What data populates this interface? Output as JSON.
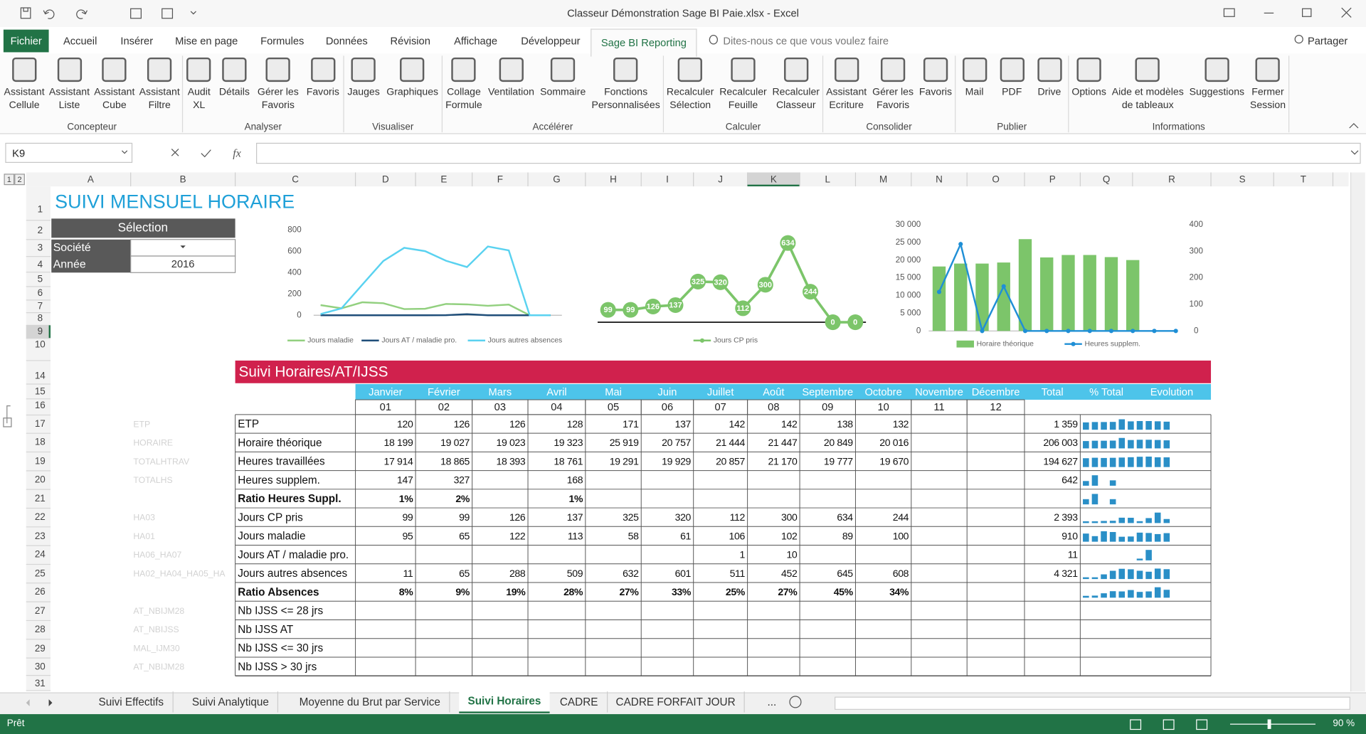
{
  "title_bar": {
    "title": "Classeur Démonstration Sage BI Paie.xlsx - Excel"
  },
  "ribbon_tabs": [
    "Fichier",
    "Accueil",
    "Insérer",
    "Mise en page",
    "Formules",
    "Données",
    "Révision",
    "Affichage",
    "Développeur",
    "Sage BI Reporting"
  ],
  "tell_me": "Dites-nous ce que vous voulez faire",
  "share": "Partager",
  "ribbon_groups": [
    {
      "name": "Concepteur",
      "buttons": [
        [
          "Assistant",
          "Cellule"
        ],
        [
          "Assistant",
          "Liste"
        ],
        [
          "Assistant",
          "Cube"
        ],
        [
          "Assistant",
          "Filtre"
        ]
      ]
    },
    {
      "name": "Analyser",
      "buttons": [
        [
          "Audit",
          "XL"
        ],
        [
          "Détails"
        ],
        [
          "Gérer les",
          "Favoris"
        ],
        [
          "Favoris"
        ]
      ]
    },
    {
      "name": "Visualiser",
      "buttons": [
        [
          "Jauges"
        ],
        [
          "Graphiques"
        ]
      ]
    },
    {
      "name": "Accélérer",
      "buttons": [
        [
          "Collage",
          "Formule"
        ],
        [
          "Ventilation"
        ],
        [
          "Sommaire"
        ],
        [
          "Fonctions",
          "Personnalisées"
        ]
      ]
    },
    {
      "name": "Calculer",
      "buttons": [
        [
          "Recalculer",
          "Sélection"
        ],
        [
          "Recalculer",
          "Feuille"
        ],
        [
          "Recalculer",
          "Classeur"
        ]
      ]
    },
    {
      "name": "Consolider",
      "buttons": [
        [
          "Assistant",
          "Ecriture"
        ],
        [
          "Gérer les",
          "Favoris"
        ],
        [
          "Favoris"
        ]
      ]
    },
    {
      "name": "Publier",
      "buttons": [
        [
          "Mail"
        ],
        [
          "PDF"
        ],
        [
          "Drive"
        ]
      ]
    },
    {
      "name": "Informations",
      "buttons": [
        [
          "Options"
        ],
        [
          "Aide et modèles",
          "de tableaux"
        ],
        [
          "Suggestions"
        ],
        [
          "Fermer",
          "Session"
        ]
      ]
    }
  ],
  "formula_bar": {
    "name_box": "K9",
    "function_label": "fx"
  },
  "outline_levels": [
    "1",
    "2"
  ],
  "columns": [
    "A",
    "B",
    "C",
    "D",
    "E",
    "F",
    "G",
    "H",
    "I",
    "J",
    "K",
    "L",
    "M",
    "N",
    "O",
    "P",
    "Q",
    "R",
    "S",
    "T"
  ],
  "rows": [
    "1",
    "2",
    "3",
    "4",
    "5",
    "6",
    "7",
    "8",
    "9",
    "10",
    "14",
    "15",
    "16",
    "17",
    "18",
    "19",
    "20",
    "21",
    "22",
    "23",
    "24",
    "25",
    "26",
    "27",
    "28",
    "29",
    "30",
    "31"
  ],
  "sheet": {
    "title": "SUIVI MENSUEL HORAIRE",
    "selection": {
      "header": "Sélection",
      "rows": [
        {
          "label": "Société"
        },
        {
          "label": "Année",
          "value": "2016"
        }
      ]
    }
  },
  "charts": [
    {
      "type": "line",
      "ylim": [
        0,
        800
      ],
      "yticks": [
        0,
        200,
        400,
        600,
        800
      ],
      "series": [
        {
          "name": "Jours maladie",
          "color": "#92d07f",
          "values": [
            95,
            65,
            122,
            113,
            58,
            61,
            106,
            102,
            89,
            100,
            0,
            0
          ]
        },
        {
          "name": "Jours AT / maladie pro.",
          "color": "#1f4e79",
          "values": [
            0,
            0,
            0,
            0,
            0,
            0,
            1,
            10,
            0,
            0,
            0,
            0
          ]
        },
        {
          "name": "Jours autres absences",
          "color": "#5ad2f0",
          "values": [
            11,
            65,
            288,
            509,
            632,
            601,
            511,
            452,
            645,
            608,
            0,
            0
          ]
        }
      ]
    },
    {
      "type": "line",
      "data_labels": true,
      "series": [
        {
          "name": "Jours CP pris",
          "color": "#7cc56a",
          "values": [
            99,
            99,
            126,
            137,
            325,
            320,
            112,
            300,
            634,
            244,
            0,
            0
          ]
        }
      ]
    },
    {
      "type": "bar",
      "ylim": [
        0,
        30000
      ],
      "yticks": [
        0,
        {
          "value": 5000,
          "label": "5 000"
        },
        {
          "value": 10000,
          "label": "10 000"
        },
        {
          "value": 15000,
          "label": "15 000"
        },
        {
          "value": 20000,
          "label": "20 000"
        },
        {
          "value": 25000,
          "label": "25 000"
        },
        {
          "value": 30000,
          "label": "30 000"
        }
      ],
      "y2lim": [
        0,
        400
      ],
      "y2ticks": [
        0,
        100,
        200,
        300,
        400
      ],
      "series": [
        {
          "name": "Horaire théorique",
          "color": "#7cc56a",
          "values": [
            18199,
            19027,
            19023,
            19323,
            25919,
            20757,
            21444,
            21447,
            20849,
            20016
          ]
        },
        {
          "name": "Heures supplem.",
          "color": "#1f8fd6",
          "type": "line",
          "axis": "y2",
          "values": [
            147,
            327,
            0,
            168,
            0,
            0,
            0,
            0,
            0,
            0,
            0,
            0
          ]
        }
      ]
    }
  ],
  "table": {
    "title": "Suivi Horaires/AT/IJSS",
    "months": [
      "Janvier",
      "Février",
      "Mars",
      "Avril",
      "Mai",
      "Juin",
      "Juillet",
      "Août",
      "Septembre",
      "Octobre",
      "Novembre",
      "Décembre"
    ],
    "month_numbers": [
      "01",
      "02",
      "03",
      "04",
      "05",
      "06",
      "07",
      "08",
      "09",
      "10",
      "11",
      "12"
    ],
    "total_header": "Total",
    "pct_header": "% Total",
    "evolution_header": "Evolution",
    "rows": [
      {
        "code": "ETP",
        "label": "ETP",
        "values": [
          "120",
          "126",
          "126",
          "128",
          "171",
          "137",
          "142",
          "142",
          "138",
          "132",
          null,
          null
        ],
        "total": "1 359"
      },
      {
        "code": "HORAIRE",
        "label": "Horaire théorique",
        "values": [
          "18 199",
          "19 027",
          "19 023",
          "19 323",
          "25 919",
          "20 757",
          "21 444",
          "21 447",
          "20 849",
          "20 016",
          null,
          null
        ],
        "total": "206 003"
      },
      {
        "code": "TOTALHTRAV",
        "label": "Heures travaillées",
        "values": [
          "17 914",
          "18 865",
          "18 393",
          "18 761",
          "19 291",
          "19 929",
          "20 857",
          "21 170",
          "19 777",
          "19 670",
          null,
          null
        ],
        "total": "194 627"
      },
      {
        "code": "TOTALHS",
        "label": "Heures supplem.",
        "values": [
          "147",
          "327",
          null,
          "168",
          null,
          null,
          null,
          null,
          null,
          null,
          null,
          null
        ],
        "total": "642"
      },
      {
        "label": "Ratio Heures Suppl.",
        "bold": true,
        "values": [
          "1%",
          "2%",
          null,
          "1%",
          null,
          null,
          null,
          null,
          null,
          null,
          null,
          null
        ]
      },
      {
        "code": "HA03",
        "label": "Jours CP pris",
        "values": [
          "99",
          "99",
          "126",
          "137",
          "325",
          "320",
          "112",
          "300",
          "634",
          "244",
          null,
          null
        ],
        "total": "2 393"
      },
      {
        "code": "HA01",
        "label": "Jours maladie",
        "values": [
          "95",
          "65",
          "122",
          "113",
          "58",
          "61",
          "106",
          "102",
          "89",
          "100",
          null,
          null
        ],
        "total": "910"
      },
      {
        "code": "HA06_HA07",
        "label": "Jours AT / maladie pro.",
        "values": [
          null,
          null,
          null,
          null,
          null,
          null,
          "1",
          "10",
          null,
          null,
          null,
          null
        ],
        "total": "11"
      },
      {
        "code": "HA02_HA04_HA05_HA",
        "label": "Jours autres absences",
        "values": [
          "11",
          "65",
          "288",
          "509",
          "632",
          "601",
          "511",
          "452",
          "645",
          "608",
          null,
          null
        ],
        "total": "4 321"
      },
      {
        "label": "Ratio Absences",
        "bold": true,
        "values": [
          "8%",
          "9%",
          "19%",
          "28%",
          "27%",
          "33%",
          "25%",
          "27%",
          "45%",
          "34%",
          null,
          null
        ]
      },
      {
        "code": "AT_NBIJM28",
        "label": "Nb IJSS <= 28 jrs"
      },
      {
        "code": "AT_NBIJSS",
        "label": "Nb IJSS AT"
      },
      {
        "code": "MAL_IJM30",
        "label": "Nb IJSS <= 30 jrs"
      },
      {
        "code": "AT_NBIJM28",
        "label": "Nb IJSS > 30 jrs"
      }
    ]
  },
  "sheet_tabs": [
    "Suivi Effectifs",
    "Suivi Analytique",
    "Moyenne du Brut par Service",
    "Suivi Horaires",
    "CADRE",
    "CADRE FORFAIT JOUR"
  ],
  "more_tabs": "...",
  "status": {
    "ready": "Prêt",
    "zoom": "90 %"
  }
}
